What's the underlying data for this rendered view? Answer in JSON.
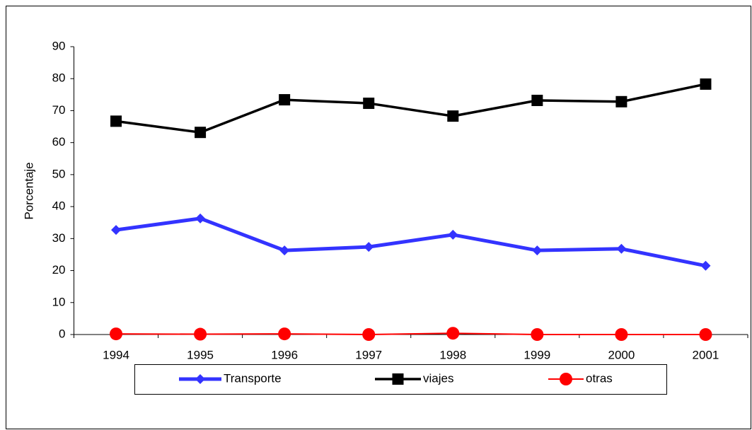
{
  "chart_data": {
    "type": "line",
    "y_label": "Porcentaje",
    "categories": [
      "1994",
      "1995",
      "1996",
      "1997",
      "1998",
      "1999",
      "2000",
      "2001"
    ],
    "series": [
      {
        "name": "Transporte",
        "color": "#3333ff",
        "marker": "diamond",
        "values": [
          32.7,
          36.3,
          26.3,
          27.4,
          31.2,
          26.3,
          26.8,
          21.5
        ]
      },
      {
        "name": "viajes",
        "color": "#000000",
        "marker": "square",
        "values": [
          66.7,
          63.2,
          73.4,
          72.3,
          68.3,
          73.2,
          72.8,
          78.3
        ]
      },
      {
        "name": "otras",
        "color": "#ff0000",
        "marker": "circle",
        "values": [
          0.2,
          0.1,
          0.2,
          0,
          0.4,
          0,
          0,
          0
        ]
      }
    ],
    "ylim": [
      0,
      90
    ],
    "yticks": [
      0,
      10,
      20,
      30,
      40,
      50,
      60,
      70,
      80,
      90
    ],
    "grid": false,
    "legend": "bottom"
  }
}
